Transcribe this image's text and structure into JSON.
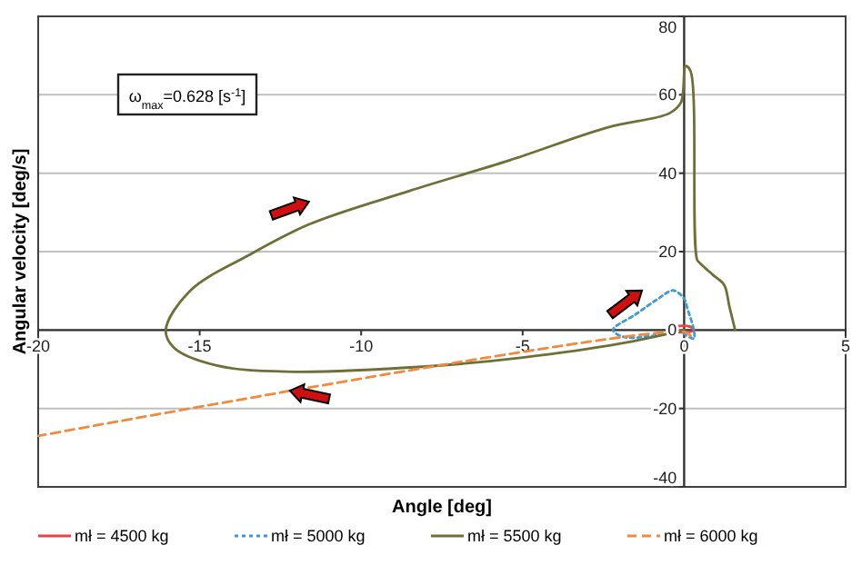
{
  "chart_data": {
    "type": "line",
    "xlabel": "Angle [deg]",
    "ylabel": "Angular velocity  [deg/s]",
    "annotations": [
      "ω$_{max}$=0.628 [s$^{-1}$]"
    ],
    "xlim": [
      -20,
      5
    ],
    "xticks": [
      -20,
      -15,
      -10,
      -5,
      0,
      5
    ],
    "ylim": [
      -40,
      80
    ],
    "yticks": [
      -40,
      -20,
      0,
      20,
      40,
      60,
      80
    ],
    "grid": "y",
    "legend": "bottom",
    "marker": "none",
    "series": [
      {
        "name": "mł = 4500 kg",
        "color": "#e04848",
        "line_style": "solid",
        "x": [
          0,
          -0.5,
          -0.2,
          0.2,
          0.3,
          0,
          -0.4
        ],
        "values": [
          0,
          0.3,
          1,
          0.8,
          0,
          -0.6,
          -0.3
        ]
      },
      {
        "name": "mł = 5000 kg",
        "color": "#3d9ad6",
        "line_style": "dotted",
        "x": [
          0,
          -1,
          -1.85,
          -2.2,
          -1.5,
          -0.8,
          -0.34,
          0,
          0.1,
          0.3,
          0.3,
          0
        ],
        "values": [
          0,
          -1.5,
          -1.8,
          0,
          4,
          8,
          10.1,
          8,
          5.5,
          0,
          -2.2,
          -1
        ]
      },
      {
        "name": "mł = 5500 kg",
        "color": "#6e7038",
        "line_style": "solid",
        "x": [
          0,
          -2,
          -5,
          -8,
          -12.3,
          -14.5,
          -15.8,
          -16.05,
          -15.3,
          -13.5,
          -11.6,
          -8.5,
          -5.4,
          -2.4,
          -0.45,
          -0.1,
          0.05,
          0.2,
          0.4,
          0.5,
          0.9,
          1.24,
          1.4,
          1.58
        ],
        "values": [
          0,
          -3.5,
          -7,
          -9.3,
          -10.6,
          -9,
          -4.5,
          0,
          10,
          19,
          27,
          35.5,
          43.3,
          51.6,
          55.3,
          58,
          67.3,
          66,
          18,
          17,
          14,
          11.5,
          6,
          0
        ]
      },
      {
        "name": "mł = 6000 kg",
        "color": "#f08a3c",
        "line_style": "dashed",
        "x": [
          0.2,
          0,
          -20
        ],
        "values": [
          -1.5,
          -0.5,
          -27
        ]
      }
    ]
  }
}
